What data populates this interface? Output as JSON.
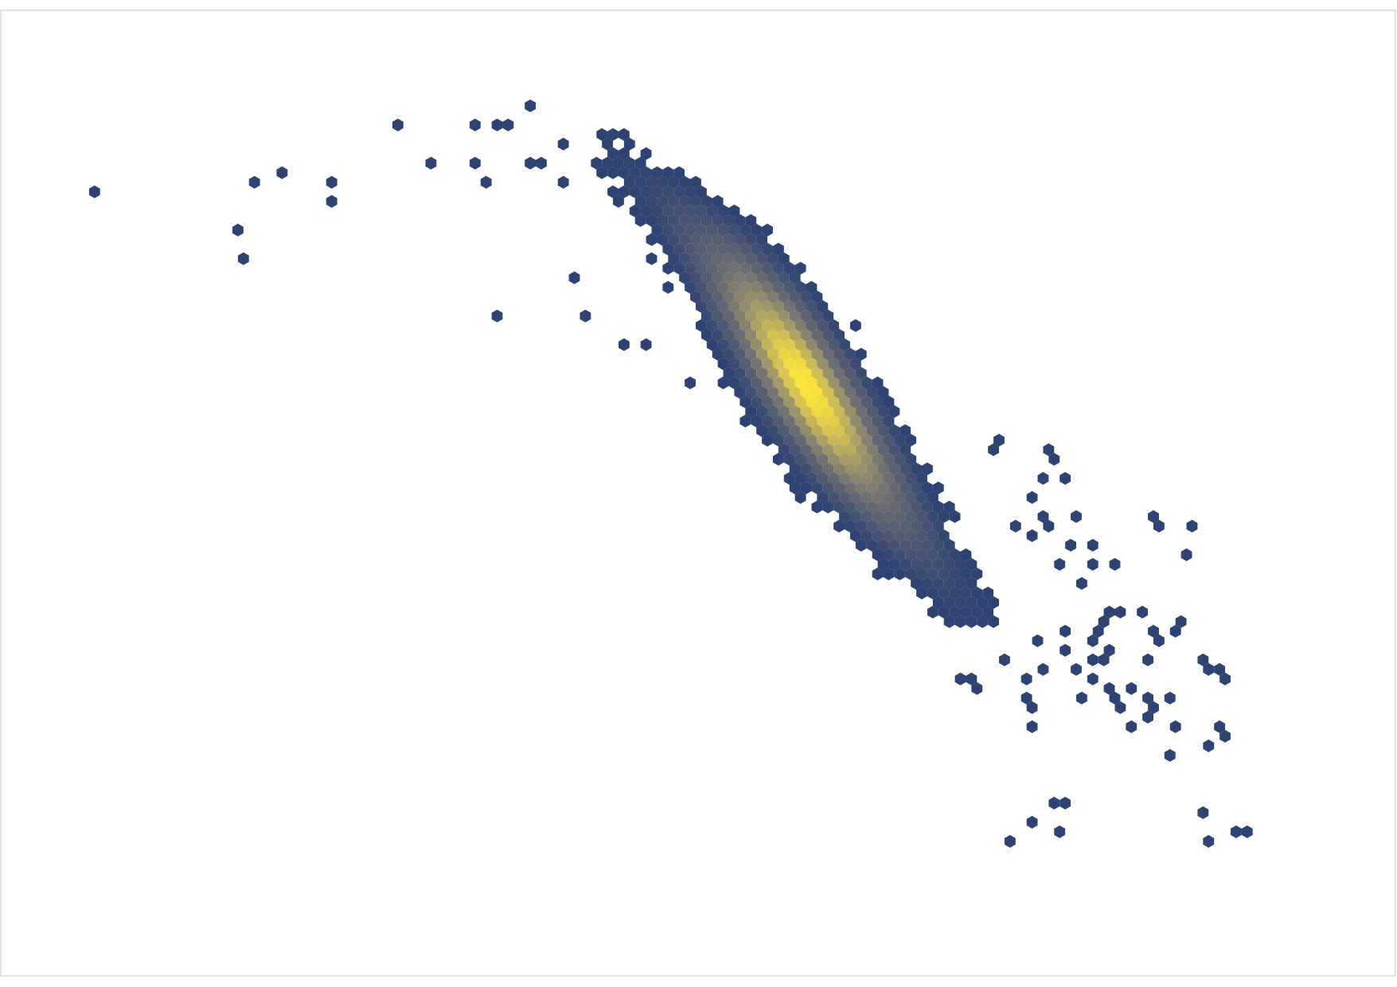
{
  "chart_data": {
    "type": "heatmap",
    "subtype": "hexbin",
    "title": "",
    "xlabel": "",
    "ylabel": "",
    "axes_visible": false,
    "grid": false,
    "legend": "none",
    "colormap": "cividis",
    "colors": {
      "low": "#2e4371",
      "mid": "#7c7b78",
      "high": "#fde838"
    },
    "x_range": [
      0,
      100
    ],
    "y_range": [
      0,
      100
    ],
    "ridge_points": [
      [
        44.0,
        85.0
      ],
      [
        48.0,
        80.0
      ],
      [
        52.0,
        73.5
      ],
      [
        55.0,
        67.5
      ],
      [
        58.5,
        59.5
      ],
      [
        61.0,
        54.0
      ],
      [
        64.0,
        48.0
      ],
      [
        67.0,
        42.5
      ],
      [
        69.5,
        38.0
      ]
    ],
    "scattered_points": [
      [
        6.5,
        81.0
      ],
      [
        16.8,
        77.5
      ],
      [
        17.4,
        74.0
      ],
      [
        18.2,
        81.8
      ],
      [
        20.5,
        83.0
      ],
      [
        23.6,
        81.8
      ],
      [
        24.0,
        80.6
      ],
      [
        28.5,
        88.5
      ],
      [
        31.2,
        84.2
      ],
      [
        33.8,
        84.2
      ],
      [
        34.6,
        81.8
      ],
      [
        35.2,
        68.5
      ],
      [
        33.8,
        88.5
      ],
      [
        35.6,
        88.5
      ],
      [
        36.5,
        88.5
      ],
      [
        37.9,
        89.7
      ],
      [
        37.9,
        84.2
      ],
      [
        38.5,
        84.2
      ],
      [
        40.5,
        81.8
      ],
      [
        40.7,
        86.3
      ],
      [
        40.9,
        72.1
      ],
      [
        42.3,
        68.5
      ],
      [
        43.3,
        87.3
      ],
      [
        44.1,
        87.3
      ],
      [
        45.0,
        84.2
      ],
      [
        45.5,
        83.0
      ],
      [
        49.5,
        61.3
      ],
      [
        45.0,
        65.1
      ],
      [
        46.3,
        65.1
      ],
      [
        51.4,
        73.3
      ],
      [
        59.8,
        67.3
      ],
      [
        60.0,
        63.6
      ],
      [
        54.4,
        56.4
      ],
      [
        56.3,
        53.9
      ],
      [
        56.5,
        51.7
      ],
      [
        58.7,
        53.3
      ],
      [
        58.9,
        52.0
      ],
      [
        71.8,
        55.1
      ],
      [
        71.4,
        54.2
      ],
      [
        75.0,
        54.2
      ],
      [
        75.8,
        53.3
      ],
      [
        74.6,
        52.0
      ],
      [
        76.0,
        51.7
      ],
      [
        73.6,
        49.4
      ],
      [
        74.6,
        48.0
      ],
      [
        73.0,
        46.7
      ],
      [
        74.0,
        45.5
      ],
      [
        76.8,
        47.6
      ],
      [
        77.2,
        48.0
      ],
      [
        75.4,
        46.3
      ],
      [
        76.6,
        44.2
      ],
      [
        76.0,
        42.8
      ],
      [
        78.6,
        44.2
      ],
      [
        80.0,
        43.0
      ],
      [
        82.4,
        48.0
      ],
      [
        83.0,
        47.0
      ],
      [
        85.6,
        47.0
      ],
      [
        85.2,
        43.7
      ],
      [
        78.6,
        42.5
      ],
      [
        77.6,
        40.2
      ],
      [
        79.4,
        38.0
      ],
      [
        79.4,
        36.8
      ],
      [
        78.0,
        34.3
      ],
      [
        74.2,
        34.3
      ],
      [
        76.6,
        33.3
      ],
      [
        76.4,
        35.6
      ],
      [
        73.2,
        30.9
      ],
      [
        75.0,
        31.9
      ],
      [
        76.8,
        31.9
      ],
      [
        78.6,
        30.9
      ],
      [
        78.4,
        32.8
      ],
      [
        79.4,
        33.1
      ],
      [
        78.6,
        35.5
      ],
      [
        80.0,
        37.8
      ],
      [
        82.0,
        37.9
      ],
      [
        83.0,
        35.6
      ],
      [
        84.4,
        37.0
      ],
      [
        82.8,
        34.3
      ],
      [
        82.4,
        32.8
      ],
      [
        83.0,
        35.5
      ],
      [
        84.4,
        35.5
      ],
      [
        79.4,
        29.7
      ],
      [
        77.4,
        28.4
      ],
      [
        73.6,
        27.9
      ],
      [
        78.0,
        31.0
      ],
      [
        80.2,
        29.2
      ],
      [
        82.6,
        28.6
      ],
      [
        80.0,
        27.9
      ],
      [
        82.0,
        27.2
      ],
      [
        84.2,
        28.4
      ],
      [
        86.8,
        31.9
      ],
      [
        69.0,
        30.9
      ],
      [
        70.2,
        29.7
      ],
      [
        73.8,
        29.2
      ],
      [
        71.8,
        33.0
      ],
      [
        86.6,
        33.0
      ],
      [
        87.2,
        31.6
      ],
      [
        88.0,
        30.4
      ],
      [
        82.4,
        27.3
      ],
      [
        87.2,
        26.0
      ],
      [
        82.0,
        26.7
      ],
      [
        81.0,
        30.2
      ],
      [
        79.2,
        33.9
      ],
      [
        84.6,
        25.9
      ],
      [
        86.6,
        23.4
      ],
      [
        80.8,
        25.6
      ],
      [
        84.2,
        22.6
      ],
      [
        73.6,
        25.6
      ],
      [
        69.4,
        30.7
      ],
      [
        75.2,
        18.0
      ],
      [
        76.0,
        18.0
      ],
      [
        74.0,
        15.8
      ],
      [
        76.2,
        14.7
      ],
      [
        72.2,
        13.5
      ],
      [
        86.6,
        16.9
      ],
      [
        86.6,
        13.5
      ],
      [
        88.8,
        14.6
      ],
      [
        89.7,
        14.6
      ],
      [
        87.4,
        24.4
      ]
    ]
  }
}
